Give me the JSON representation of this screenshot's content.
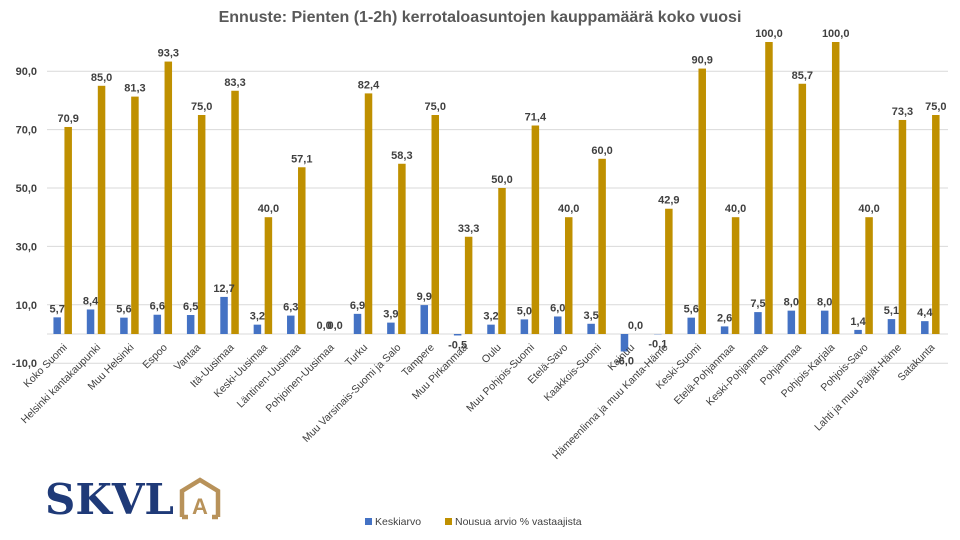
{
  "chart_data": {
    "type": "bar",
    "title": "Ennuste: Pienten (1-2h) kerrotaloasuntojen kauppamäärä koko vuosi",
    "xlabel": "",
    "ylabel": "",
    "ylim": [
      -10,
      100
    ],
    "yticks": [
      -10,
      10,
      30,
      50,
      70,
      90
    ],
    "ytick_labels": [
      "-10,0",
      "10,0",
      "30,0",
      "50,0",
      "70,0",
      "90,0"
    ],
    "grid": true,
    "legend_position": "bottom",
    "categories": [
      "Koko Suomi",
      "Helsinki kantakaupunki",
      "Muu Helsinki",
      "Espoo",
      "Vantaa",
      "Itä-Uusimaa",
      "Keski-Uusimaa",
      "Läntinen-Uusimaa",
      "Pohjoinen-Uusimaa",
      "Turku",
      "Muu Varsinais-Suomi ja Salo",
      "Tampere",
      "Muu Pirkanmaa",
      "Oulu",
      "Muu Pohjois-Suomi",
      "Etelä-Savo",
      "Kaakkois-Suomi",
      "Kainuu",
      "Hämeenlinna ja muu Kanta-Häme",
      "Keski-Suomi",
      "Etelä-Pohjanmaa",
      "Keski-Pohjanmaa",
      "Pohjanmaa",
      "Pohjois-Karjala",
      "Pohjois-Savo",
      "Lahti ja muu Päijät-Häme",
      "Satakunta"
    ],
    "series": [
      {
        "name": "Keskiarvo",
        "color": "#4472c4",
        "values": [
          5.7,
          8.4,
          5.6,
          6.6,
          6.5,
          12.7,
          3.2,
          6.3,
          0.0,
          6.9,
          3.9,
          9.9,
          -0.5,
          3.2,
          5.0,
          6.0,
          3.5,
          -6.0,
          -0.1,
          5.6,
          2.6,
          7.5,
          8.0,
          8.0,
          1.4,
          5.1,
          4.4
        ],
        "labels": [
          "5,7",
          "8,4",
          "5,6",
          "6,6",
          "6,5",
          "12,7",
          "3,2",
          "6,3",
          "0,0",
          "6,9",
          "3,9",
          "9,9",
          "-0,5",
          "3,2",
          "5,0",
          "6,0",
          "3,5",
          "-6,0",
          "-0,1",
          "5,6",
          "2,6",
          "7,5",
          "8,0",
          "8,0",
          "1,4",
          "5,1",
          "4,4"
        ]
      },
      {
        "name": "Nousua arvio % vastaajista",
        "color": "#bf9000",
        "values": [
          70.9,
          85.0,
          81.3,
          93.3,
          75.0,
          83.3,
          40.0,
          57.1,
          0.0,
          82.4,
          58.3,
          75.0,
          33.3,
          50.0,
          71.4,
          40.0,
          60.0,
          0.0,
          42.9,
          90.9,
          40.0,
          100.0,
          85.7,
          100.0,
          40.0,
          73.3,
          75.0
        ],
        "labels": [
          "70,9",
          "85,0",
          "81,3",
          "93,3",
          "75,0",
          "83,3",
          "40,0",
          "57,1",
          "0,0",
          "82,4",
          "58,3",
          "75,0",
          "33,3",
          "50,0",
          "71,4",
          "40,0",
          "60,0",
          "0,0",
          "42,9",
          "90,9",
          "40,0",
          "100,0",
          "85,7",
          "100,0",
          "40,0",
          "73,3",
          "75,0"
        ]
      }
    ]
  },
  "logo": {
    "text": "SKVL",
    "mark_letter": "A",
    "text_color": "#1f3a78",
    "mark_color": "#b8925a"
  }
}
